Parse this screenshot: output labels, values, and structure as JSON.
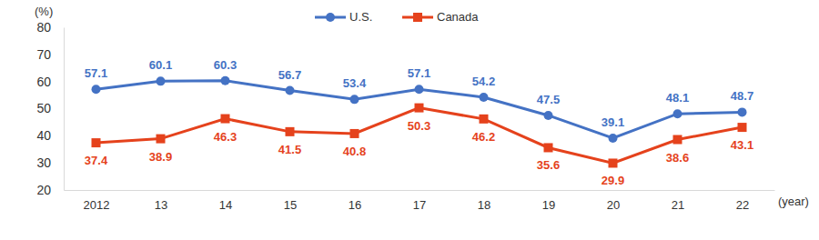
{
  "chart_data": {
    "type": "line",
    "y_label": "(%)",
    "x_label": "(year)",
    "categories": [
      "2012",
      "13",
      "14",
      "15",
      "16",
      "17",
      "18",
      "19",
      "20",
      "21",
      "22"
    ],
    "series": [
      {
        "name": "U.S.",
        "color": "#4472c4",
        "marker": "circle",
        "line_style": "solid",
        "values": [
          57.1,
          60.1,
          60.3,
          56.7,
          53.4,
          57.1,
          54.2,
          47.5,
          39.1,
          48.1,
          48.7
        ]
      },
      {
        "name": "Canada",
        "color": "#e5421c",
        "marker": "square",
        "line_style": "solid",
        "values": [
          37.4,
          38.9,
          46.3,
          41.5,
          40.8,
          50.3,
          46.2,
          35.6,
          29.9,
          38.6,
          43.1
        ]
      }
    ],
    "ylim": [
      20,
      80
    ],
    "yticks": [
      20,
      30,
      40,
      50,
      60,
      70,
      80
    ],
    "grid": false,
    "legend": "top",
    "data_labels": true
  }
}
